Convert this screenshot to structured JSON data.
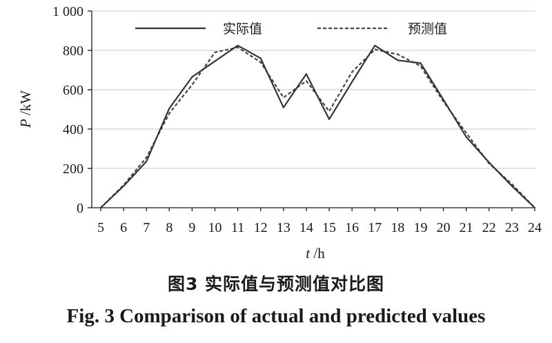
{
  "chart_data": {
    "type": "line",
    "x": [
      5,
      6,
      7,
      8,
      9,
      10,
      11,
      12,
      13,
      14,
      15,
      16,
      17,
      18,
      19,
      20,
      21,
      22,
      23,
      24
    ],
    "xticks": [
      "5",
      "6",
      "7",
      "8",
      "9",
      "10",
      "11",
      "12",
      "13",
      "14",
      "15",
      "16",
      "17",
      "18",
      "19",
      "20",
      "21",
      "22",
      "23",
      "24"
    ],
    "series": [
      {
        "name": "实际值",
        "line_style": "solid",
        "color": "#333333",
        "values": [
          0,
          110,
          235,
          505,
          665,
          745,
          825,
          760,
          510,
          680,
          450,
          640,
          825,
          750,
          735,
          550,
          360,
          230,
          110,
          0
        ]
      },
      {
        "name": "预测值",
        "line_style": "dashed",
        "color": "#444444",
        "values": [
          0,
          115,
          255,
          480,
          625,
          790,
          815,
          740,
          560,
          645,
          490,
          690,
          805,
          780,
          720,
          540,
          380,
          225,
          120,
          0
        ]
      }
    ],
    "xlabel_var": "t",
    "xlabel_unit": " /h",
    "ylabel_var": "P",
    "ylabel_unit": " /kW",
    "ylim": [
      0,
      1000
    ],
    "yticks": [
      0,
      200,
      400,
      600,
      800,
      1000
    ],
    "ytick_labels": [
      "0",
      "200",
      "400",
      "600",
      "800",
      "1 000"
    ],
    "grid": "horizontal",
    "legend_position": "top"
  },
  "caption": {
    "cn": "图3  实际值与预测值对比图",
    "en": "Fig. 3   Comparison of actual and predicted values"
  }
}
